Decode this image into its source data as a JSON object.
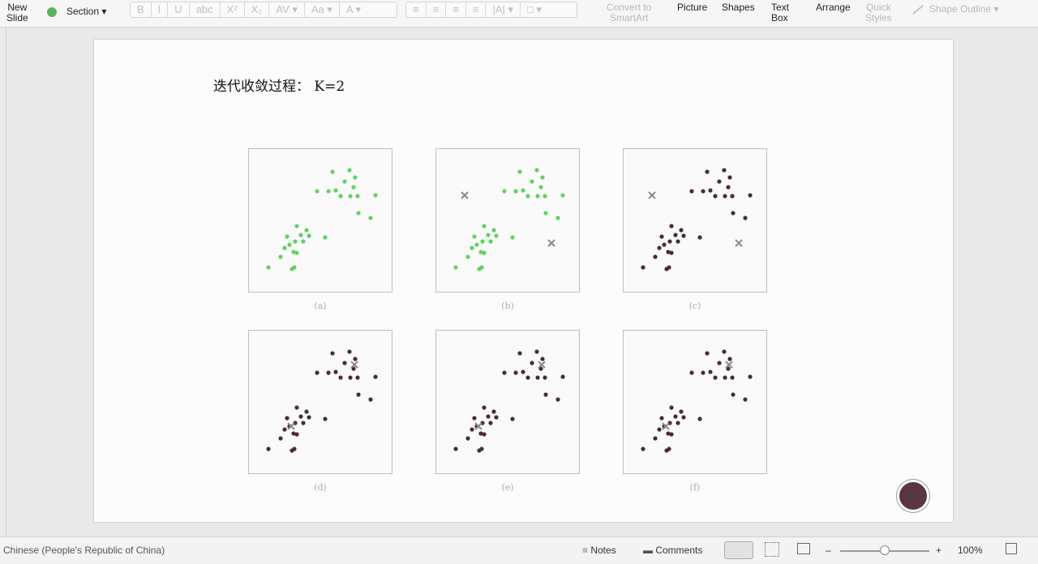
{
  "ribbon": {
    "new_slide": [
      "New",
      "Slide"
    ],
    "section": "Section ▾",
    "font_buttons": [
      "B",
      "I",
      "U",
      "abc",
      "X²",
      "X₂",
      "AV ▾",
      "Aa ▾",
      "A ▾"
    ],
    "para_buttons": [
      "≡",
      "≡",
      "≡",
      "≡",
      "|A| ▾",
      "□ ▾"
    ],
    "convert": [
      "Convert to",
      "SmartArt"
    ],
    "picture": "Picture",
    "shapes": "Shapes",
    "textbox": [
      "Text",
      "Box"
    ],
    "arrange": "Arrange",
    "quick_styles": [
      "Quick",
      "Styles"
    ],
    "shape_outline": "Shape Outline ▾"
  },
  "slide": {
    "title": "迭代收敛过程：  K=2",
    "panels": [
      {
        "caption": "(a)",
        "colored": "green",
        "centroids": []
      },
      {
        "caption": "(b)",
        "colored": "green",
        "centroids": [
          "upper",
          "lower"
        ]
      },
      {
        "caption": "(c)",
        "colored": "dark",
        "centroids": [
          "upper",
          "lower"
        ]
      },
      {
        "caption": "(d)",
        "colored": "dark",
        "centroids": [
          "upper",
          "lower"
        ]
      },
      {
        "caption": "(e)",
        "colored": "dark",
        "centroids": [
          "upper",
          "lower"
        ]
      },
      {
        "caption": "(f)",
        "colored": "dark",
        "centroids": [
          "upper",
          "lower"
        ]
      }
    ]
  },
  "status": {
    "language": "Chinese (People's Republic of China)",
    "notes": "Notes",
    "comments": "Comments",
    "zoom": "100%",
    "minus": "–",
    "plus": "+"
  },
  "colors": {
    "green_points": "#5fd35f",
    "dark_points": "#4a2a35",
    "centroid": "#8a8a8a",
    "record_button": "#5a3543"
  },
  "icons": [
    "notes-icon",
    "comments-icon",
    "normal-view-icon",
    "slide-sorter-icon",
    "reading-view-icon",
    "fit-window-icon",
    "record-icon"
  ]
}
